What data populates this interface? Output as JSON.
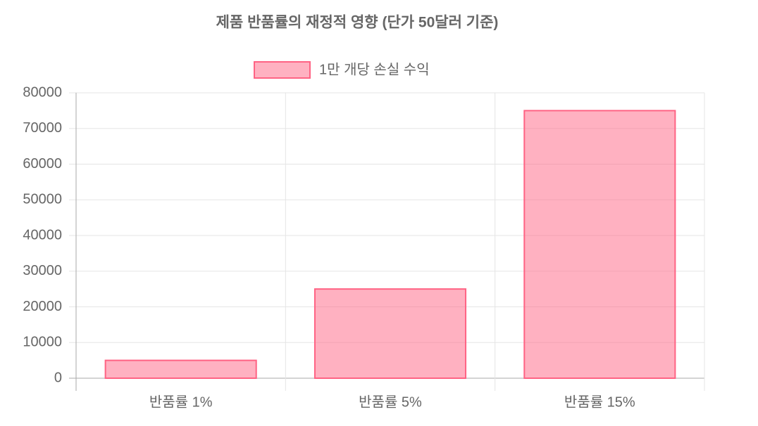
{
  "chart_data": {
    "type": "bar",
    "title": "제품 반품률의 재정적 영향 (단가 50달러 기준)",
    "categories": [
      "반품률 1%",
      "반품률 5%",
      "반품률 15%"
    ],
    "series": [
      {
        "name": "1만 개당 손실 수익",
        "color": "#ff6384",
        "values": [
          5000,
          25000,
          75000
        ]
      }
    ],
    "ylim": [
      0,
      80000
    ],
    "yticks": [
      0,
      10000,
      20000,
      30000,
      40000,
      50000,
      60000,
      70000,
      80000
    ],
    "grid": true,
    "legend": "top"
  }
}
